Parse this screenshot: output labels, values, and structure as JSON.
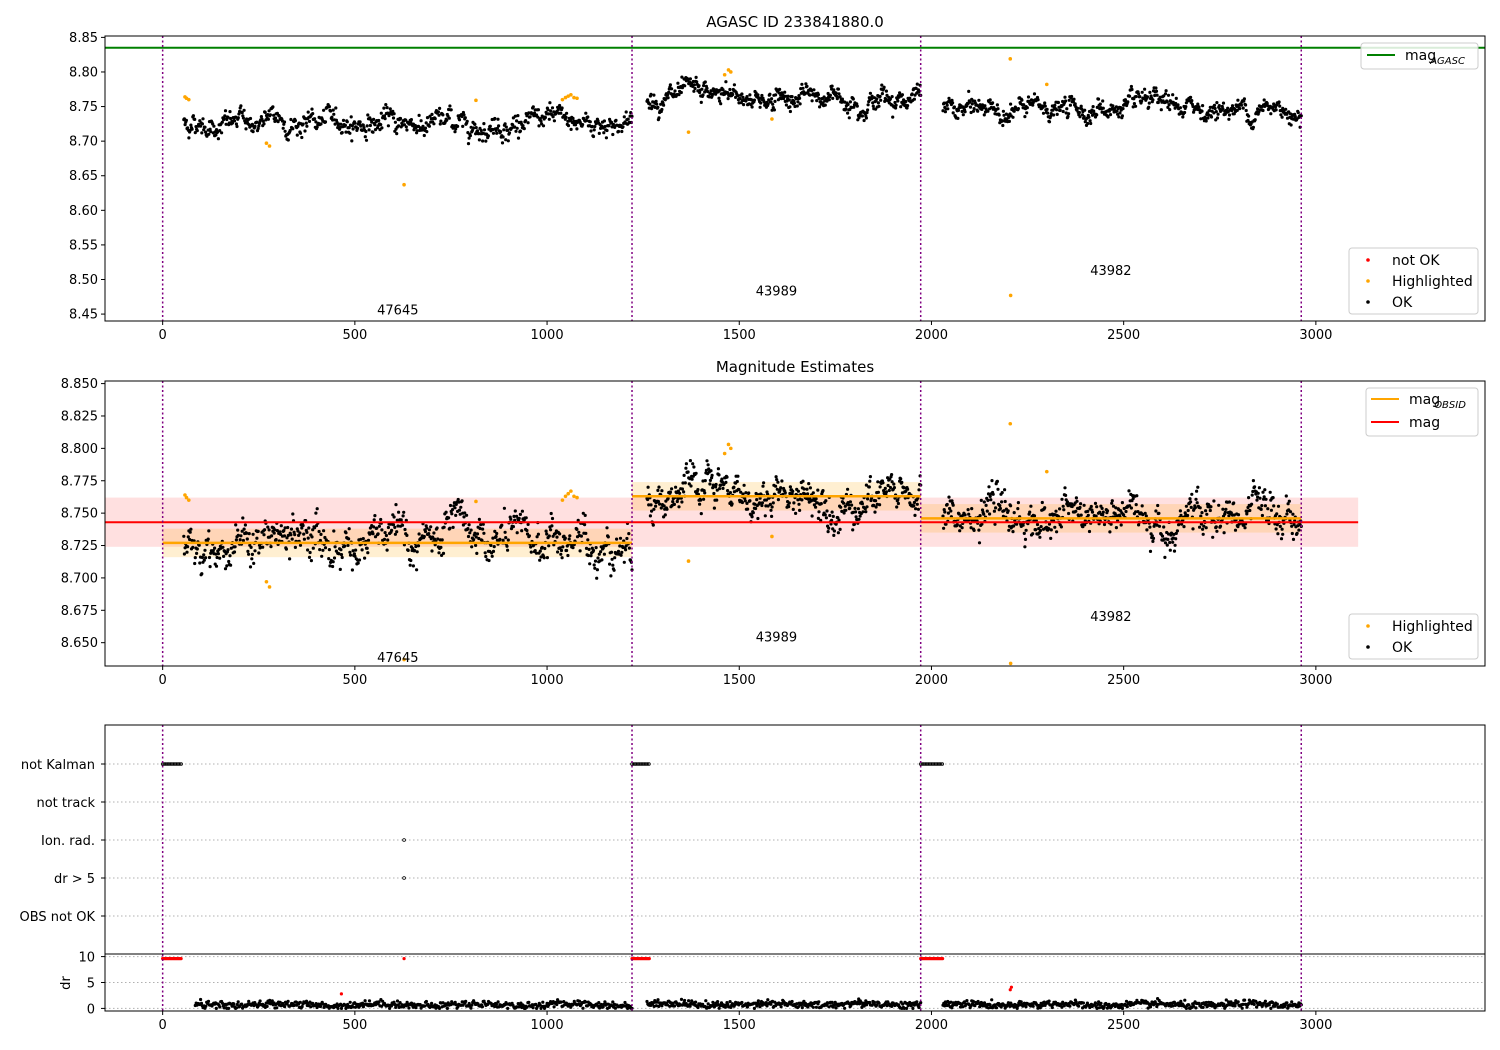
{
  "chart_data": [
    {
      "type": "scatter",
      "title": "AGASC ID 233841880.0",
      "xlim": [
        -150,
        3440
      ],
      "ylim": [
        8.44,
        8.852
      ],
      "x_ticks": [
        0,
        500,
        1000,
        1500,
        2000,
        2500,
        3000
      ],
      "y_ticks": [
        "8.45",
        "8.50",
        "8.55",
        "8.60",
        "8.65",
        "8.70",
        "8.75",
        "8.80",
        "8.85"
      ],
      "obs_boundaries": [
        0,
        1221,
        1972,
        2962
      ],
      "hlines": [
        {
          "name": "mag",
          "sub": "AGASC",
          "value": 8.835,
          "color": "#008000"
        }
      ],
      "obsid_labels": [
        {
          "text": "47645",
          "x": 610,
          "y": 8.455
        },
        {
          "text": "43989",
          "x": 1595,
          "y": 8.483
        },
        {
          "text": "43982",
          "x": 2465,
          "y": 8.512
        }
      ],
      "series": [
        {
          "name": "OK",
          "color": "#000000",
          "segments": [
            {
              "x0": 55,
              "x1": 1221,
              "base": 8.727,
              "spread": 0.01,
              "n": 700
            },
            {
              "x0": 1260,
              "x1": 1972,
              "base": 8.763,
              "spread": 0.009,
              "n": 480
            },
            {
              "x0": 2030,
              "x1": 2962,
              "base": 8.746,
              "spread": 0.009,
              "n": 600
            }
          ]
        },
        {
          "name": "Highlighted",
          "color": "#ffa500",
          "points": [
            [
              58,
              8.764
            ],
            [
              62,
              8.762
            ],
            [
              68,
              8.76
            ],
            [
              270,
              8.697
            ],
            [
              278,
              8.693
            ],
            [
              628,
              8.637
            ],
            [
              815,
              8.759
            ],
            [
              1040,
              8.76
            ],
            [
              1048,
              8.763
            ],
            [
              1055,
              8.765
            ],
            [
              1062,
              8.767
            ],
            [
              1070,
              8.763
            ],
            [
              1078,
              8.762
            ],
            [
              1368,
              8.713
            ],
            [
              1462,
              8.796
            ],
            [
              1472,
              8.803
            ],
            [
              1478,
              8.8
            ],
            [
              1585,
              8.732
            ],
            [
              2205,
              8.819
            ],
            [
              2206,
              8.477
            ],
            [
              2300,
              8.782
            ]
          ]
        },
        {
          "name": "not OK",
          "color": "#ff0000",
          "points": []
        }
      ],
      "legend": {
        "position": "lower right",
        "entries": [
          "not OK",
          "Highlighted",
          "OK"
        ]
      }
    },
    {
      "type": "scatter",
      "title": "Magnitude Estimates",
      "xlim": [
        -150,
        3440
      ],
      "ylim": [
        8.632,
        8.852
      ],
      "x_ticks": [
        0,
        500,
        1000,
        1500,
        2000,
        2500,
        3000
      ],
      "y_ticks": [
        "8.650",
        "8.675",
        "8.700",
        "8.725",
        "8.750",
        "8.775",
        "8.800",
        "8.825",
        "8.850"
      ],
      "obs_boundaries": [
        0,
        1221,
        1972,
        2962
      ],
      "hlines": [
        {
          "name": "mag",
          "value": 8.743,
          "x0": -150,
          "x1": 3110,
          "band": [
            8.724,
            8.762
          ],
          "color": "#ff0000"
        }
      ],
      "obsid_mags": [
        {
          "name": "mag",
          "sub": "OBSID",
          "x0": 0,
          "x1": 1221,
          "value": 8.727,
          "band": [
            8.716,
            8.738
          ],
          "color": "#ffa500"
        },
        {
          "name": "mag",
          "sub": "OBSID",
          "x0": 1221,
          "x1": 1972,
          "value": 8.763,
          "band": [
            8.752,
            8.774
          ],
          "color": "#ffa500"
        },
        {
          "name": "mag",
          "sub": "OBSID",
          "x0": 1972,
          "x1": 2962,
          "value": 8.746,
          "band": [
            8.735,
            8.757
          ],
          "color": "#ffa500"
        }
      ],
      "obsid_labels": [
        {
          "text": "47645",
          "x": 610,
          "y": 8.638
        },
        {
          "text": "43989",
          "x": 1595,
          "y": 8.654
        },
        {
          "text": "43982",
          "x": 2465,
          "y": 8.67
        }
      ],
      "series": [
        {
          "name": "OK",
          "color": "#000000",
          "segments": [
            {
              "x0": 55,
              "x1": 1221,
              "base": 8.727,
              "spread": 0.01,
              "n": 700
            },
            {
              "x0": 1260,
              "x1": 1972,
              "base": 8.763,
              "spread": 0.009,
              "n": 480
            },
            {
              "x0": 2030,
              "x1": 2962,
              "base": 8.746,
              "spread": 0.009,
              "n": 600
            }
          ]
        },
        {
          "name": "Highlighted",
          "color": "#ffa500",
          "points": [
            [
              58,
              8.764
            ],
            [
              62,
              8.762
            ],
            [
              68,
              8.76
            ],
            [
              270,
              8.697
            ],
            [
              278,
              8.693
            ],
            [
              628,
              8.637
            ],
            [
              815,
              8.759
            ],
            [
              1040,
              8.76
            ],
            [
              1048,
              8.763
            ],
            [
              1055,
              8.765
            ],
            [
              1062,
              8.767
            ],
            [
              1070,
              8.763
            ],
            [
              1078,
              8.762
            ],
            [
              1368,
              8.713
            ],
            [
              1462,
              8.796
            ],
            [
              1472,
              8.803
            ],
            [
              1478,
              8.8
            ],
            [
              1585,
              8.732
            ],
            [
              2205,
              8.819
            ],
            [
              2206,
              8.634
            ],
            [
              2300,
              8.782
            ]
          ]
        }
      ],
      "legend_top": {
        "position": "upper right",
        "entries": [
          {
            "name": "mag",
            "sub": "OBSID"
          },
          {
            "name": "mag"
          }
        ]
      },
      "legend": {
        "position": "lower right",
        "entries": [
          "Highlighted",
          "OK"
        ]
      }
    },
    {
      "type": "scatter",
      "title": "",
      "xlim": [
        -150,
        3440
      ],
      "x_ticks": [
        0,
        500,
        1000,
        1500,
        2000,
        2500,
        3000
      ],
      "obs_boundaries": [
        0,
        1221,
        1972,
        2962
      ],
      "flag_rows": [
        "not Kalman",
        "not track",
        "Ion. rad.",
        "dr > 5",
        "OBS not OK"
      ],
      "flags": [
        {
          "row": "not Kalman",
          "ranges": [
            [
              0,
              50
            ],
            [
              1221,
              1268
            ],
            [
              1972,
              2030
            ]
          ]
        },
        {
          "row": "Ion. rad.",
          "points": [
            628
          ]
        },
        {
          "row": "dr > 5",
          "points": [
            628
          ]
        }
      ],
      "dr": {
        "ylabel": "dr",
        "y_ticks": [
          "0",
          "5",
          "10"
        ],
        "ylim": [
          -0.5,
          10.5
        ],
        "ok_segments": [
          {
            "x0": 85,
            "x1": 1221,
            "base": 0.7,
            "n": 500
          },
          {
            "x0": 1260,
            "x1": 1972,
            "base": 0.8,
            "n": 350
          },
          {
            "x0": 2030,
            "x1": 2962,
            "base": 0.7,
            "n": 450
          }
        ],
        "clipped_ranges": [
          [
            0,
            50
          ],
          [
            1221,
            1268
          ],
          [
            1972,
            2030
          ]
        ],
        "clipped_points": [
          628
        ],
        "red_points": [
          [
            465,
            2.8
          ],
          [
            2205,
            3.6
          ],
          [
            2208,
            4.1
          ]
        ],
        "clip_value": 10
      }
    }
  ]
}
